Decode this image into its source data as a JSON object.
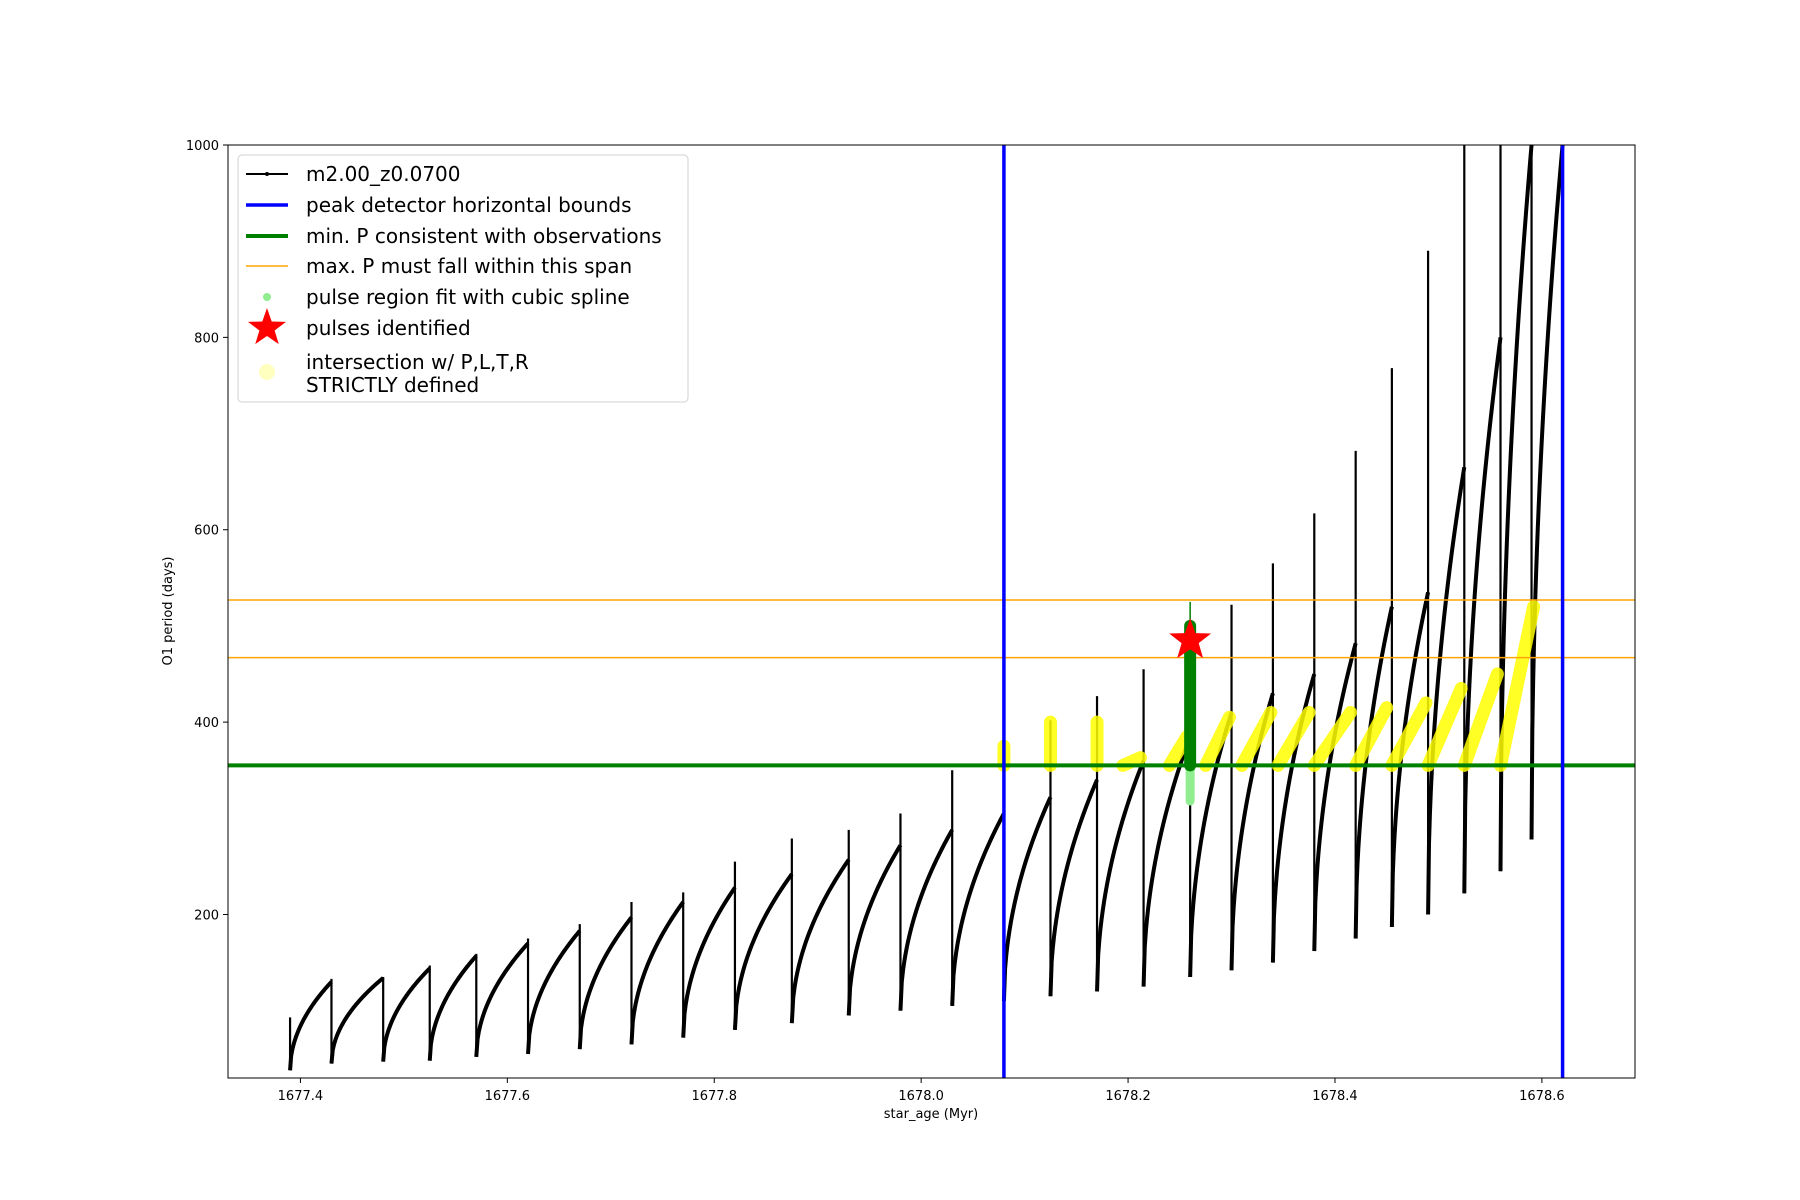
{
  "chart_data": {
    "type": "line",
    "xlabel": "star_age (Myr)",
    "ylabel": "O1 period (days)",
    "xlim": [
      1677.33,
      1678.69
    ],
    "ylim": [
      30,
      1000
    ],
    "xticks": [
      "1677.4",
      "1677.6",
      "1677.8",
      "1678.0",
      "1678.2",
      "1678.4",
      "1678.6"
    ],
    "yticks": [
      "200",
      "400",
      "600",
      "800",
      "1000"
    ],
    "grid": false,
    "legend_position": "top-left",
    "colors": {
      "track": "#000000",
      "bounds": "#0000ff",
      "min_p": "#008000",
      "max_p": "#ffa500",
      "spline": "#90ee90",
      "pulse": "#ff0000",
      "intersection": "#ffff00"
    },
    "legend": [
      {
        "key": "track",
        "label": "m2.00_z0.0700"
      },
      {
        "key": "bounds",
        "label": "peak detector horizontal bounds"
      },
      {
        "key": "min_p",
        "label": "min. P consistent with observations"
      },
      {
        "key": "max_p",
        "label": "max. P must fall within this span"
      },
      {
        "key": "spline",
        "label": "pulse region fit with cubic spline"
      },
      {
        "key": "pulse",
        "label": "pulses identified"
      },
      {
        "key": "intersection",
        "label": "intersection w/ P,L,T,R\nSTRICTLY defined"
      }
    ],
    "reference_lines": {
      "vertical_bounds_x": [
        1678.08,
        1678.62
      ],
      "min_period_y": 355,
      "max_period_span_y": [
        467,
        527
      ]
    },
    "pulses_identified": [
      {
        "x": 1678.26,
        "y": 485
      }
    ],
    "spline_region": {
      "x": 1678.26,
      "y_range": [
        318,
        525
      ]
    },
    "thermal_pulses": [
      {
        "x": 1677.39,
        "start": 38,
        "peak": 130,
        "spike": 93
      },
      {
        "x": 1677.43,
        "start": 45,
        "peak": 134,
        "spike": 133
      },
      {
        "x": 1677.48,
        "start": 47,
        "peak": 144,
        "spike": 135
      },
      {
        "x": 1677.525,
        "start": 48,
        "peak": 157,
        "spike": 147
      },
      {
        "x": 1677.57,
        "start": 52,
        "peak": 170,
        "spike": 159
      },
      {
        "x": 1677.62,
        "start": 55,
        "peak": 183,
        "spike": 175
      },
      {
        "x": 1677.67,
        "start": 60,
        "peak": 197,
        "spike": 190
      },
      {
        "x": 1677.72,
        "start": 65,
        "peak": 213,
        "spike": 213
      },
      {
        "x": 1677.77,
        "start": 72,
        "peak": 228,
        "spike": 223
      },
      {
        "x": 1677.82,
        "start": 80,
        "peak": 242,
        "spike": 255
      },
      {
        "x": 1677.875,
        "start": 87,
        "peak": 257,
        "spike": 279
      },
      {
        "x": 1677.93,
        "start": 95,
        "peak": 272,
        "spike": 288
      },
      {
        "x": 1677.98,
        "start": 100,
        "peak": 288,
        "spike": 305
      },
      {
        "x": 1678.03,
        "start": 105,
        "peak": 305,
        "spike": 350
      },
      {
        "x": 1678.08,
        "start": 110,
        "peak": 322,
        "spike": 310
      },
      {
        "x": 1678.125,
        "start": 115,
        "peak": 340,
        "spike": 402
      },
      {
        "x": 1678.17,
        "start": 120,
        "peak": 360,
        "spike": 427
      },
      {
        "x": 1678.215,
        "start": 125,
        "peak": 385,
        "spike": 455
      },
      {
        "x": 1678.26,
        "start": 135,
        "peak": 410,
        "spike": 500
      },
      {
        "x": 1678.3,
        "start": 142,
        "peak": 430,
        "spike": 522
      },
      {
        "x": 1678.34,
        "start": 150,
        "peak": 450,
        "spike": 565
      },
      {
        "x": 1678.38,
        "start": 162,
        "peak": 482,
        "spike": 617
      },
      {
        "x": 1678.42,
        "start": 175,
        "peak": 520,
        "spike": 682
      },
      {
        "x": 1678.455,
        "start": 187,
        "peak": 535,
        "spike": 768
      },
      {
        "x": 1678.49,
        "start": 200,
        "peak": 665,
        "spike": 890
      },
      {
        "x": 1678.525,
        "start": 222,
        "peak": 800,
        "spike": 1000
      },
      {
        "x": 1678.56,
        "start": 245,
        "peak": 1000,
        "spike": 1000
      },
      {
        "x": 1678.59,
        "start": 278,
        "peak": 1000,
        "spike": 1000
      },
      {
        "x": 1678.62,
        "start": 345,
        "peak": 1000,
        "spike": 1000
      }
    ],
    "intersection_segments": [
      {
        "x0": 1678.08,
        "x1": 1678.08,
        "y0": 355,
        "y1": 375
      },
      {
        "x0": 1678.125,
        "x1": 1678.125,
        "y0": 355,
        "y1": 400
      },
      {
        "x0": 1678.17,
        "x1": 1678.17,
        "y0": 355,
        "y1": 400
      },
      {
        "x0": 1678.195,
        "x1": 1678.212,
        "y0": 355,
        "y1": 363
      },
      {
        "x0": 1678.24,
        "x1": 1678.257,
        "y0": 355,
        "y1": 385
      },
      {
        "x0": 1678.275,
        "x1": 1678.298,
        "y0": 355,
        "y1": 405
      },
      {
        "x0": 1678.31,
        "x1": 1678.338,
        "y0": 355,
        "y1": 410
      },
      {
        "x0": 1678.345,
        "x1": 1678.375,
        "y0": 355,
        "y1": 410
      },
      {
        "x0": 1678.38,
        "x1": 1678.415,
        "y0": 355,
        "y1": 410
      },
      {
        "x0": 1678.42,
        "x1": 1678.45,
        "y0": 355,
        "y1": 415
      },
      {
        "x0": 1678.455,
        "x1": 1678.488,
        "y0": 355,
        "y1": 420
      },
      {
        "x0": 1678.49,
        "x1": 1678.522,
        "y0": 355,
        "y1": 435
      },
      {
        "x0": 1678.525,
        "x1": 1678.557,
        "y0": 355,
        "y1": 450
      },
      {
        "x0": 1678.56,
        "x1": 1678.592,
        "y0": 355,
        "y1": 520
      }
    ]
  }
}
